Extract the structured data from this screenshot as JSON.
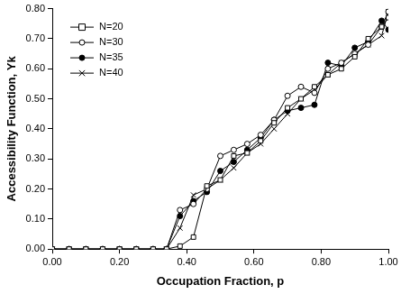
{
  "chart_data": {
    "type": "line",
    "x_label": "Occupation Fraction, p",
    "y_label": "Accessibility Function, Yk",
    "x": [
      0,
      0.05,
      0.1,
      0.15,
      0.2,
      0.25,
      0.3,
      0.34,
      0.38,
      0.42,
      0.46,
      0.5,
      0.54,
      0.58,
      0.62,
      0.66,
      0.7,
      0.74,
      0.78,
      0.82,
      0.86,
      0.9,
      0.94,
      0.98,
      1.0
    ],
    "series": [
      {
        "name": "N=20",
        "color": "#000000",
        "marker": "square_open",
        "line_style": "solid",
        "values": [
          0,
          0,
          0,
          0,
          0,
          0,
          0,
          0,
          0.01,
          0.04,
          0.21,
          0.23,
          0.31,
          0.32,
          0.36,
          0.42,
          0.47,
          0.5,
          0.54,
          0.58,
          0.6,
          0.64,
          0.7,
          0.74,
          0.77
        ]
      },
      {
        "name": "N=30",
        "color": "#000000",
        "marker": "circle_open",
        "line_style": "solid",
        "values": [
          0,
          0,
          0,
          0,
          0,
          0,
          0,
          0,
          0.13,
          0.15,
          0.2,
          0.31,
          0.33,
          0.35,
          0.38,
          0.43,
          0.51,
          0.54,
          0.52,
          0.6,
          0.62,
          0.65,
          0.68,
          0.74,
          0.79
        ]
      },
      {
        "name": "N=35",
        "color": "#000000",
        "marker": "circle",
        "line_style": "solid",
        "values": [
          0,
          0,
          0,
          0,
          0,
          0,
          0,
          0,
          0.11,
          0.16,
          0.19,
          0.26,
          0.29,
          0.33,
          0.37,
          0.43,
          0.46,
          0.47,
          0.48,
          0.62,
          0.61,
          0.67,
          0.69,
          0.76,
          0.73
        ]
      },
      {
        "name": "N=40",
        "color": "#000000",
        "marker": "x",
        "line_style": "solid",
        "values": [
          0,
          0,
          0,
          0,
          0,
          0,
          0,
          0,
          0.07,
          0.18,
          0.2,
          0.23,
          0.27,
          0.32,
          0.35,
          0.4,
          0.45,
          0.5,
          0.53,
          0.58,
          0.62,
          0.65,
          0.68,
          0.71,
          0.79
        ]
      }
    ],
    "xlim": [
      0,
      1
    ],
    "xticks": [
      {
        "value": 0,
        "label": "0.00"
      },
      {
        "value": 0.2,
        "label": "0.20"
      },
      {
        "value": 0.4,
        "label": "0.40"
      },
      {
        "value": 0.6,
        "label": "0.60"
      },
      {
        "value": 0.8,
        "label": "0.80"
      },
      {
        "value": 1,
        "label": "1.00"
      }
    ],
    "ylim": [
      0,
      0.8
    ],
    "yticks": [
      {
        "value": 0,
        "label": "0.00"
      },
      {
        "value": 0.1,
        "label": "0.10"
      },
      {
        "value": 0.2,
        "label": "0.20"
      },
      {
        "value": 0.3,
        "label": "0.30"
      },
      {
        "value": 0.4,
        "label": "0.40"
      },
      {
        "value": 0.5,
        "label": "0.50"
      },
      {
        "value": 0.6,
        "label": "0.60"
      },
      {
        "value": 0.7,
        "label": "0.70"
      },
      {
        "value": 0.8,
        "label": "0.80"
      }
    ],
    "grid": false,
    "legend": "upper left"
  }
}
